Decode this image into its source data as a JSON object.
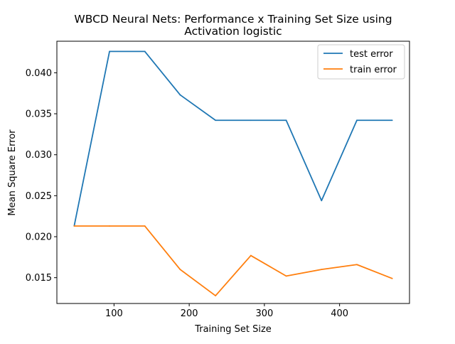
{
  "chart_data": {
    "type": "line",
    "title": [
      "WBCD Neural Nets: Performance x Training Set Size using",
      "Activation logistic"
    ],
    "xlabel": "Training Set Size",
    "ylabel": "Mean Square Error",
    "xlim": [
      24,
      493
    ],
    "ylim": [
      0.01185,
      0.04385
    ],
    "xticks": [
      100,
      200,
      300,
      400
    ],
    "xtick_labels": [
      "100",
      "200",
      "300",
      "400"
    ],
    "yticks": [
      0.015,
      0.02,
      0.025,
      0.03,
      0.035,
      0.04
    ],
    "ytick_labels": [
      "0.015",
      "0.020",
      "0.025",
      "0.030",
      "0.035",
      "0.040"
    ],
    "grid": false,
    "legend_position": "top-right",
    "x": [
      47,
      94,
      141,
      188,
      235,
      282,
      329,
      376,
      423,
      470
    ],
    "series": [
      {
        "name": "test error",
        "color": "#1f77b4",
        "values": [
          0.0213,
          0.0426,
          0.0426,
          0.0373,
          0.0342,
          0.0342,
          0.0342,
          0.0244,
          0.0342,
          0.0342
        ]
      },
      {
        "name": "train error",
        "color": "#ff7f0e",
        "values": [
          0.0213,
          0.0213,
          0.0213,
          0.016,
          0.0128,
          0.0177,
          0.0152,
          0.016,
          0.0166,
          0.0149
        ]
      }
    ]
  }
}
